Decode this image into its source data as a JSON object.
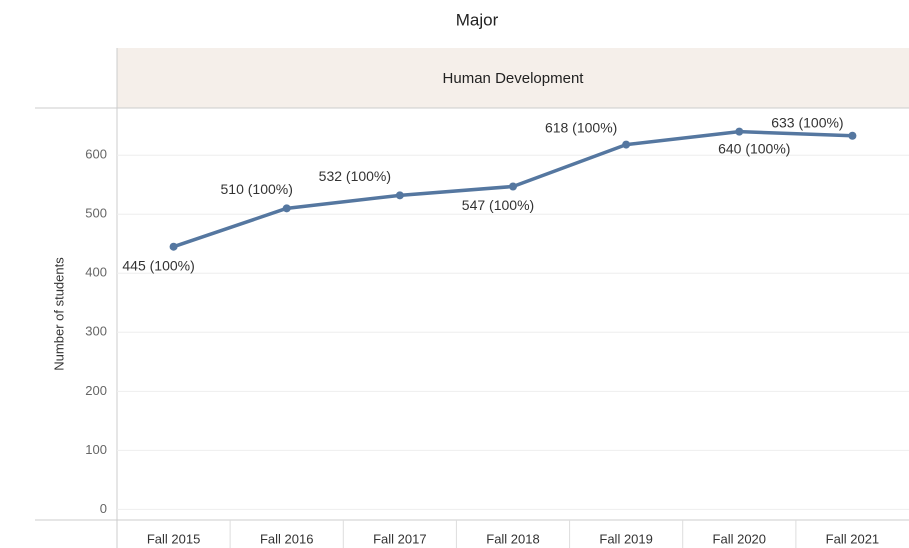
{
  "chart_data": {
    "type": "line",
    "title": "Major",
    "facet": "Human Development",
    "y_label": "Number of students",
    "categories": [
      "Fall 2015",
      "Fall 2016",
      "Fall 2017",
      "Fall 2018",
      "Fall 2019",
      "Fall 2020",
      "Fall 2021"
    ],
    "series": [
      {
        "name": "Human Development",
        "color": "#5577a0",
        "values": [
          445,
          510,
          532,
          547,
          618,
          640,
          633
        ],
        "value_labels": [
          "445 (100%)",
          "510 (100%)",
          "532 (100%)",
          "547 (100%)",
          "618 (100%)",
          "640 (100%)",
          "633 (100%)"
        ]
      }
    ],
    "ylim": [
      -18,
      680
    ],
    "yticks": [
      0,
      100,
      200,
      300,
      400,
      500,
      600
    ],
    "grid": true
  }
}
